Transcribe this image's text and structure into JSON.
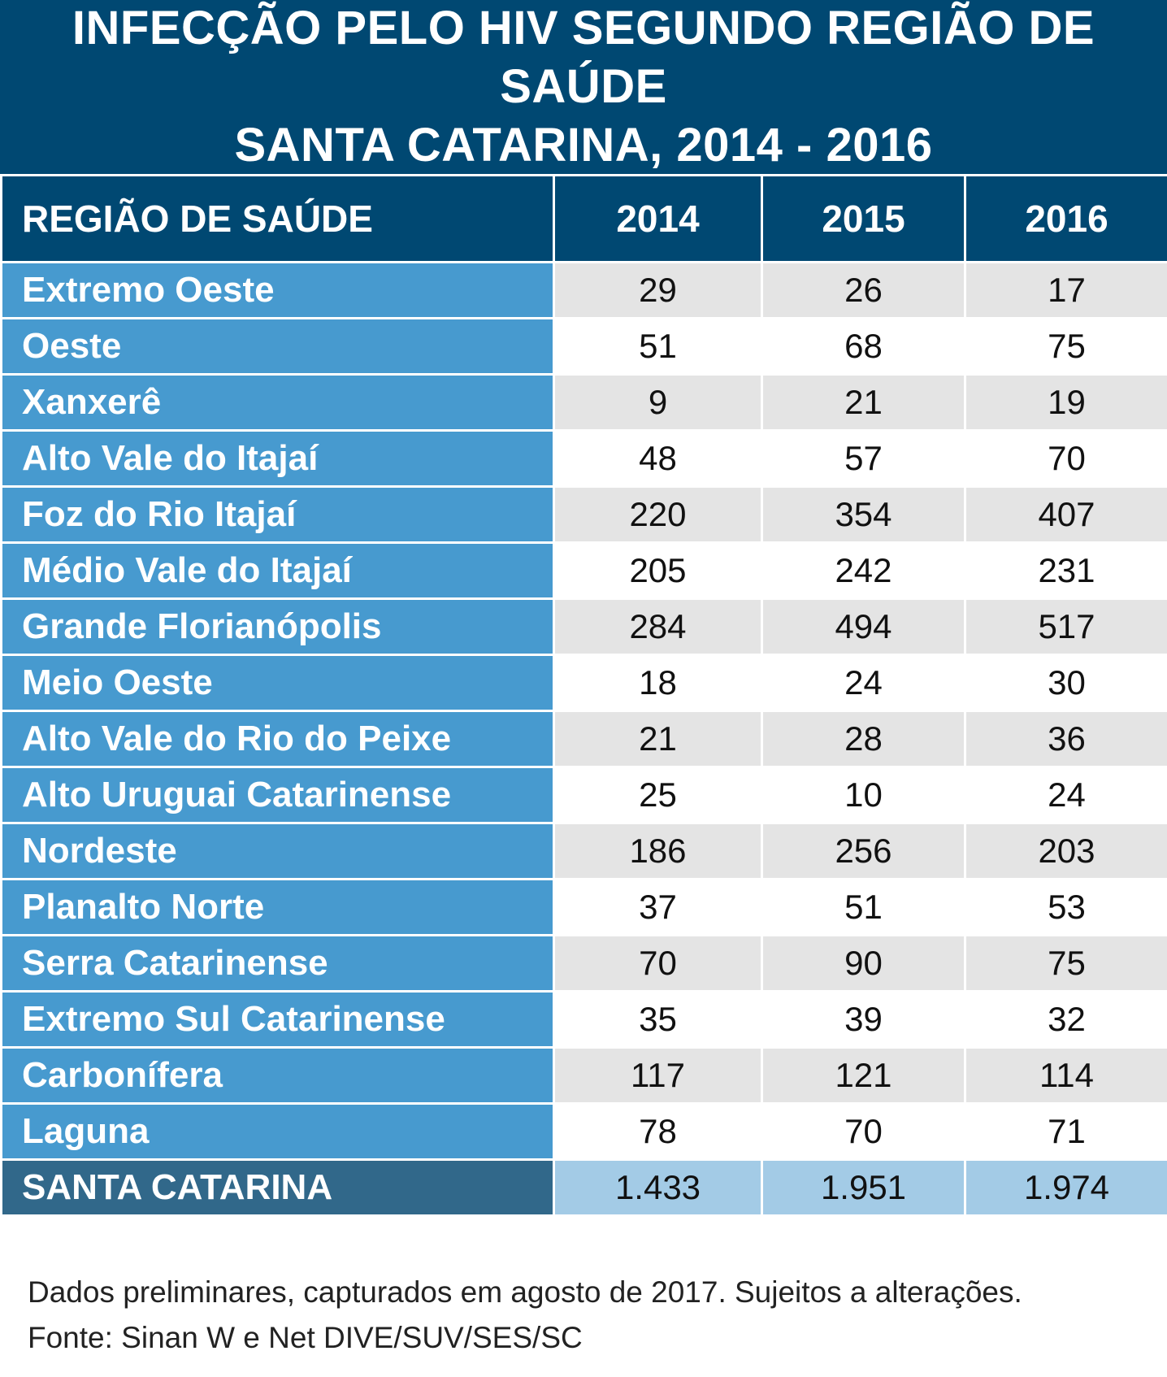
{
  "chart_data": {
    "type": "table",
    "title_lines": [
      "INFECÇÃO PELO HIV SEGUNDO REGIÃO DE SAÚDE",
      "SANTA CATARINA, 2014 - 2016"
    ],
    "columns": [
      "REGIÃO DE SAÚDE",
      "2014",
      "2015",
      "2016"
    ],
    "rows": [
      {
        "region": "Extremo Oeste",
        "values": [
          "29",
          "26",
          "17"
        ]
      },
      {
        "region": "Oeste",
        "values": [
          "51",
          "68",
          "75"
        ]
      },
      {
        "region": "Xanxerê",
        "values": [
          "9",
          "21",
          "19"
        ]
      },
      {
        "region": "Alto Vale do Itajaí",
        "values": [
          "48",
          "57",
          "70"
        ]
      },
      {
        "region": "Foz do Rio Itajaí",
        "values": [
          "220",
          "354",
          "407"
        ]
      },
      {
        "region": "Médio Vale do Itajaí",
        "values": [
          "205",
          "242",
          "231"
        ]
      },
      {
        "region": "Grande Florianópolis",
        "values": [
          "284",
          "494",
          "517"
        ]
      },
      {
        "region": "Meio Oeste",
        "values": [
          "18",
          "24",
          "30"
        ]
      },
      {
        "region": "Alto Vale do Rio do Peixe",
        "values": [
          "21",
          "28",
          "36"
        ]
      },
      {
        "region": "Alto Uruguai Catarinense",
        "values": [
          "25",
          "10",
          "24"
        ]
      },
      {
        "region": "Nordeste",
        "values": [
          "186",
          "256",
          "203"
        ]
      },
      {
        "region": "Planalto Norte",
        "values": [
          "37",
          "51",
          "53"
        ]
      },
      {
        "region": "Serra Catarinense",
        "values": [
          "70",
          "90",
          "75"
        ]
      },
      {
        "region": "Extremo Sul Catarinense",
        "values": [
          "35",
          "39",
          "32"
        ]
      },
      {
        "region": "Carbonífera",
        "values": [
          "117",
          "121",
          "114"
        ]
      },
      {
        "region": "Laguna",
        "values": [
          "78",
          "70",
          "71"
        ]
      }
    ],
    "total": {
      "region": "SANTA CATARINA",
      "values": [
        "1.433",
        "1.951",
        "1.974"
      ]
    },
    "notes": [
      "Dados preliminares, capturados em agosto de 2017. Sujeitos a alterações.",
      "Fonte: Sinan W e Net DIVE/SUV/SES/SC"
    ]
  },
  "colors": {
    "header_bg": "#004872",
    "region_bg": "#479acf",
    "row_shade": "#e4e4e4",
    "total_region_bg": "#31688a",
    "total_value_bg": "#a3cbe6"
  }
}
